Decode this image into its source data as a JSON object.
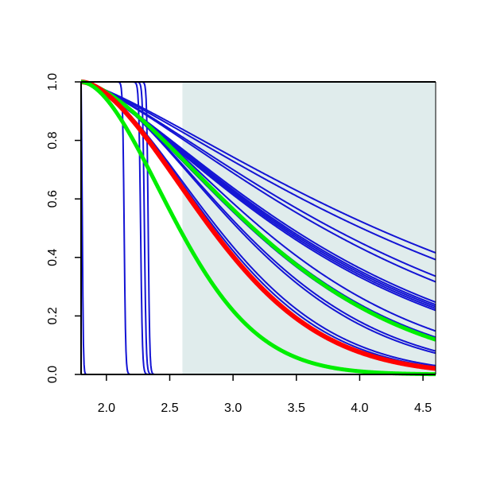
{
  "chart_data": {
    "type": "line",
    "title": "",
    "xlabel": "",
    "ylabel": "",
    "xlim": [
      1.8,
      4.6
    ],
    "ylim": [
      0.0,
      1.0
    ],
    "xticks": [
      "2.0",
      "2.5",
      "3.0",
      "3.5",
      "4.0",
      "4.5"
    ],
    "yticks": [
      "0.0",
      "0.2",
      "0.4",
      "0.6",
      "0.8",
      "1.0"
    ],
    "grid": false,
    "legend": "none",
    "shaded_region": {
      "x_from": 2.6,
      "x_to": 4.6,
      "color": "#e0ecec"
    },
    "colors": {
      "blue": "#1414d4",
      "red": "#ff0000",
      "green": "#00ee00",
      "axis": "#000000"
    },
    "series": [
      {
        "color": "#1414d4",
        "width": 2,
        "shape": "step",
        "x0": 1.8,
        "center": 1.81,
        "sharpness": 0.004
      },
      {
        "color": "#1414d4",
        "width": 2,
        "shape": "step",
        "x0": 1.8,
        "center": 2.14,
        "sharpness": 0.006
      },
      {
        "color": "#1414d4",
        "width": 2,
        "shape": "step",
        "x0": 1.8,
        "center": 2.27,
        "sharpness": 0.007
      },
      {
        "color": "#1414d4",
        "width": 2,
        "shape": "step",
        "x0": 1.8,
        "center": 2.3,
        "sharpness": 0.007
      },
      {
        "color": "#1414d4",
        "width": 2,
        "shape": "step",
        "x0": 1.8,
        "center": 2.33,
        "sharpness": 0.006
      },
      {
        "color": "#1414d4",
        "width": 2,
        "shape": "decay",
        "x0": 1.8,
        "scale": 3.1,
        "power": 1.28
      },
      {
        "color": "#1414d4",
        "width": 2,
        "shape": "decay",
        "x0": 1.8,
        "scale": 2.95,
        "power": 1.28
      },
      {
        "color": "#1414d4",
        "width": 2,
        "shape": "decay",
        "x0": 1.8,
        "scale": 2.62,
        "power": 1.32
      },
      {
        "color": "#1414d4",
        "width": 2,
        "shape": "decay",
        "x0": 1.8,
        "scale": 2.52,
        "power": 1.33
      },
      {
        "color": "#1414d4",
        "width": 2,
        "shape": "decay",
        "x0": 1.8,
        "scale": 2.18,
        "power": 1.34
      },
      {
        "color": "#1414d4",
        "width": 2,
        "shape": "decay",
        "x0": 1.8,
        "scale": 2.14,
        "power": 1.34
      },
      {
        "color": "#1414d4",
        "width": 2,
        "shape": "decay",
        "x0": 1.8,
        "scale": 2.11,
        "power": 1.34
      },
      {
        "color": "#1414d4",
        "width": 2,
        "shape": "decay",
        "x0": 1.8,
        "scale": 2.08,
        "power": 1.34
      },
      {
        "color": "#1414d4",
        "width": 2,
        "shape": "decay",
        "x0": 1.8,
        "scale": 2.05,
        "power": 1.34
      },
      {
        "color": "#1414d4",
        "width": 2,
        "shape": "decay",
        "x0": 1.8,
        "scale": 1.82,
        "power": 1.5
      },
      {
        "color": "#1414d4",
        "width": 2,
        "shape": "decay",
        "x0": 1.8,
        "scale": 1.74,
        "power": 1.52
      },
      {
        "color": "#1414d4",
        "width": 2,
        "shape": "decay",
        "x0": 1.8,
        "scale": 1.7,
        "power": 1.53
      },
      {
        "color": "#1414d4",
        "width": 2,
        "shape": "decay",
        "x0": 1.8,
        "scale": 1.58,
        "power": 1.62
      },
      {
        "color": "#1414d4",
        "width": 2,
        "shape": "decay",
        "x0": 1.8,
        "scale": 1.55,
        "power": 1.63
      },
      {
        "color": "#1414d4",
        "width": 2,
        "shape": "decay",
        "x0": 1.8,
        "scale": 1.34,
        "power": 1.7
      },
      {
        "color": "#1414d4",
        "width": 2,
        "shape": "decay",
        "x0": 1.8,
        "scale": 1.31,
        "power": 1.71
      },
      {
        "color": "#00ee00",
        "width": 5,
        "shape": "decay",
        "x0": 1.8,
        "scale": 1.72,
        "power": 1.55
      },
      {
        "color": "#ff0000",
        "width": 6,
        "shape": "decay",
        "x0": 1.8,
        "scale": 1.27,
        "power": 1.72
      },
      {
        "color": "#00ee00",
        "width": 5,
        "shape": "decay",
        "x0": 1.8,
        "scale": 0.95,
        "power": 1.8
      }
    ]
  }
}
